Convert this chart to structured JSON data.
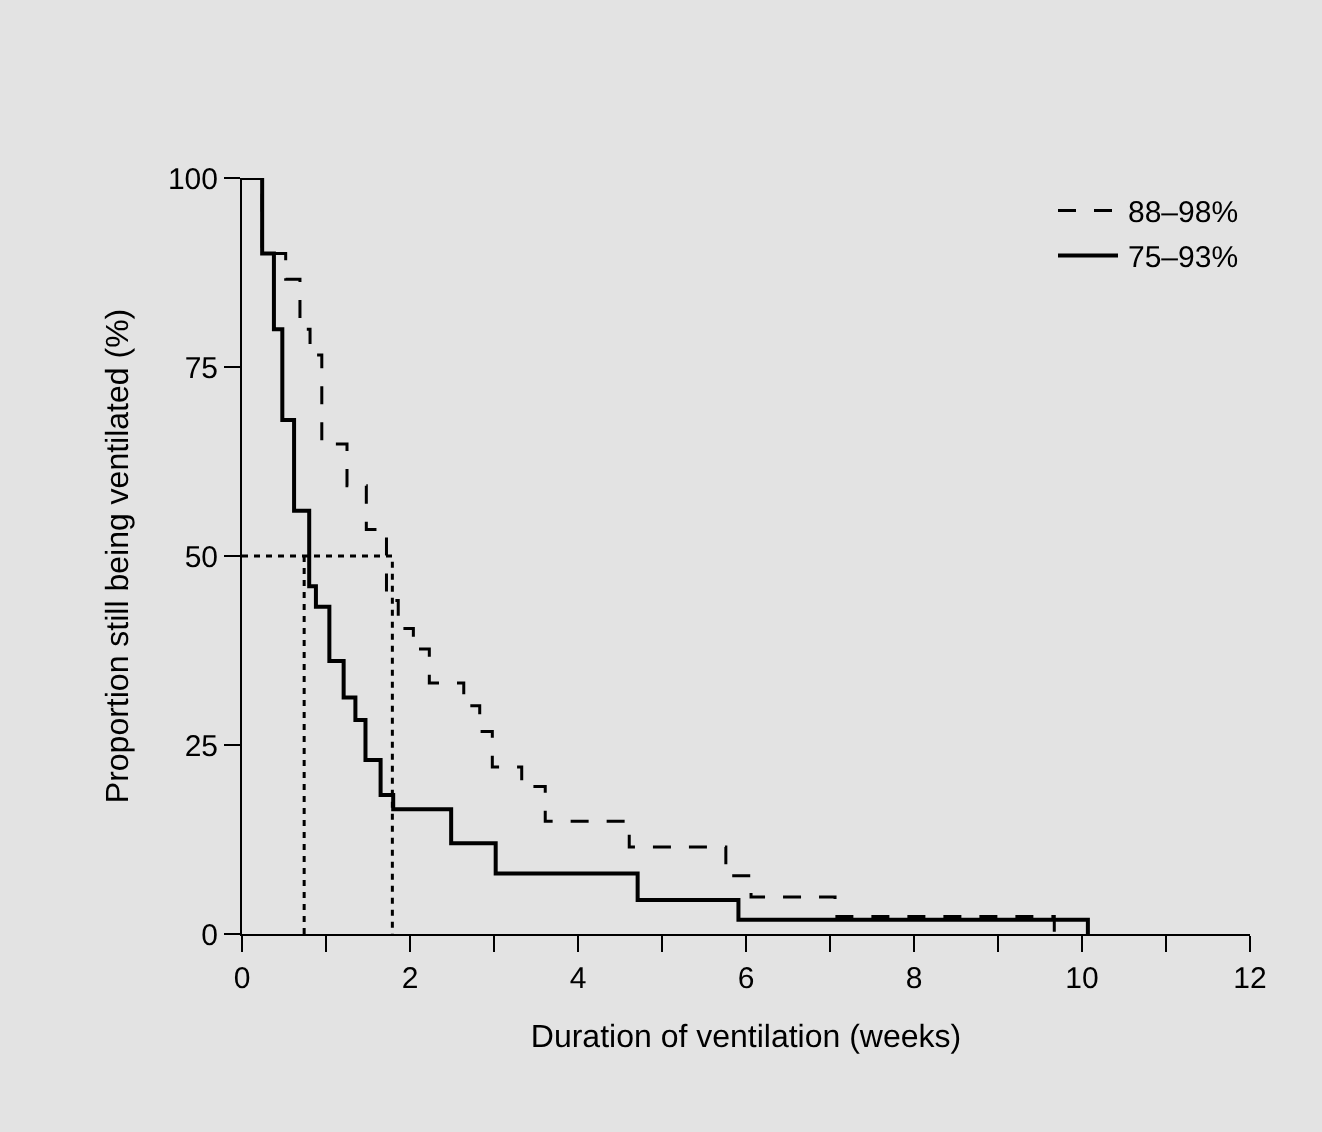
{
  "chart_data": {
    "type": "step",
    "xlabel": "Duration of ventilation (weeks)",
    "ylabel": "Proportion still being ventilated (%)",
    "xlim": [
      0,
      12
    ],
    "xticks": [
      0,
      {
        "value": 1,
        "label": null
      },
      2,
      {
        "value": 3,
        "label": null
      },
      4,
      {
        "value": 5,
        "label": null
      },
      6,
      {
        "value": 7,
        "label": null
      },
      8,
      {
        "value": 9,
        "label": null
      },
      10,
      {
        "value": 11,
        "label": null
      },
      12
    ],
    "ylim": [
      0,
      100
    ],
    "yticks": [
      0,
      25,
      50,
      75,
      100
    ],
    "grid": false,
    "legend": "top right",
    "marker": "none",
    "series": [
      {
        "name": "88–98%",
        "color": "#000000",
        "line_style": "dashed",
        "x": [
          0,
          0.24,
          0.52,
          0.69,
          0.81,
          0.95,
          1.25,
          1.48,
          1.72,
          1.86,
          2.04,
          2.23,
          2.64,
          2.83,
          2.98,
          3.33,
          3.61,
          4.61,
          5.76,
          6.06,
          7.06,
          9.67
        ],
        "values": [
          100,
          90,
          86.6,
          80,
          76.6,
          64.8,
          59.3,
          53.5,
          44.1,
          40.4,
          37.7,
          33.2,
          30.2,
          26.8,
          22.1,
          19.5,
          14.9,
          11.5,
          7.7,
          4.9,
          2.3,
          0
        ]
      },
      {
        "name": "75–93%",
        "color": "#000000",
        "line_style": "solid",
        "x": [
          0,
          0.24,
          0.38,
          0.48,
          0.62,
          0.8,
          0.88,
          1.04,
          1.21,
          1.35,
          1.47,
          1.65,
          1.8,
          2.49,
          3.02,
          4.71,
          5.91,
          10.07
        ],
        "values": [
          100,
          90,
          80,
          68,
          56,
          46,
          43.3,
          36.1,
          31.3,
          28.3,
          23,
          18.4,
          16.5,
          12,
          8,
          4.5,
          1.9,
          0
        ]
      },
      {
        "color": "#000000",
        "line_style": "dotted",
        "x": [
          0,
          1.79,
          1.79
        ],
        "values": [
          50,
          50,
          0
        ]
      },
      {
        "color": "#000000",
        "line_style": "dotted",
        "x": [
          0.74,
          0.74
        ],
        "values": [
          50,
          0
        ]
      }
    ]
  }
}
